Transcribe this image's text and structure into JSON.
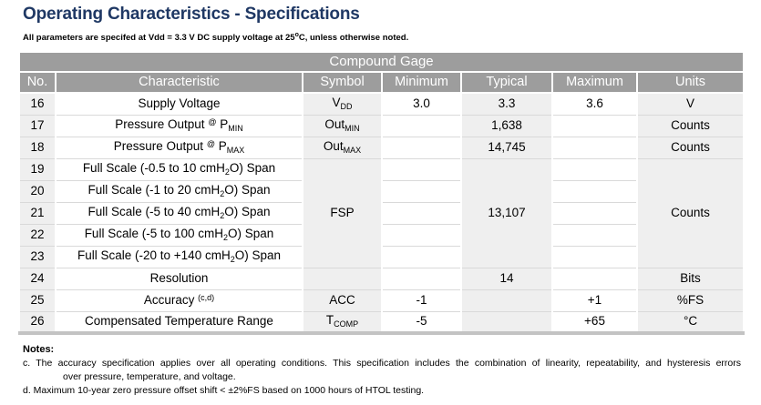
{
  "header": {
    "title": "Operating Characteristics - Specifications",
    "subtitle_pre": "All parameters are specifed at Vdd = 3.3 V DC supply voltage at 25",
    "subtitle_sup": "o",
    "subtitle_post": "C, unless otherwise noted."
  },
  "table": {
    "group_header": "Compound Gage",
    "columns": [
      "No.",
      "Characteristic",
      "Symbol",
      "Minimum",
      "Typical",
      "Maximum",
      "Units"
    ],
    "rows": [
      {
        "cells": [
          {
            "col": "no",
            "text": "16"
          },
          {
            "col": "char",
            "parts": [
              [
                "t",
                "Supply Voltage"
              ]
            ]
          },
          {
            "col": "sym",
            "parts": [
              [
                "t",
                "V"
              ],
              [
                "sub",
                "DD"
              ]
            ]
          },
          {
            "col": "min",
            "text": "3.0"
          },
          {
            "col": "typ",
            "text": "3.3"
          },
          {
            "col": "max",
            "text": "3.6"
          },
          {
            "col": "units",
            "text": "V"
          }
        ]
      },
      {
        "cells": [
          {
            "col": "no",
            "text": "17"
          },
          {
            "col": "char",
            "parts": [
              [
                "t",
                "Pressure Output "
              ],
              [
                "sup",
                "@"
              ],
              [
                "t",
                " P"
              ],
              [
                "sub",
                "MIN"
              ]
            ]
          },
          {
            "col": "sym",
            "parts": [
              [
                "t",
                "Out"
              ],
              [
                "sub",
                "MIN"
              ]
            ]
          },
          {
            "col": "min",
            "text": ""
          },
          {
            "col": "typ",
            "text": "1,638"
          },
          {
            "col": "max",
            "text": ""
          },
          {
            "col": "units",
            "text": "Counts"
          }
        ]
      },
      {
        "cells": [
          {
            "col": "no",
            "text": "18"
          },
          {
            "col": "char",
            "parts": [
              [
                "t",
                "Pressure Output "
              ],
              [
                "sup",
                "@"
              ],
              [
                "t",
                " P"
              ],
              [
                "sub",
                "MAX"
              ]
            ]
          },
          {
            "col": "sym",
            "parts": [
              [
                "t",
                "Out"
              ],
              [
                "sub",
                "MAX"
              ]
            ]
          },
          {
            "col": "min",
            "text": ""
          },
          {
            "col": "typ",
            "text": "14,745"
          },
          {
            "col": "max",
            "text": ""
          },
          {
            "col": "units",
            "text": "Counts"
          }
        ]
      },
      {
        "cells": [
          {
            "col": "no",
            "text": "19"
          },
          {
            "col": "char",
            "parts": [
              [
                "t",
                "Full Scale (-0.5 to 10 cmH"
              ],
              [
                "sub",
                "2"
              ],
              [
                "t",
                "O) Span"
              ]
            ]
          },
          {
            "col": "sym",
            "rowspan": 5,
            "text": "FSP"
          },
          {
            "col": "min",
            "text": ""
          },
          {
            "col": "typ",
            "rowspan": 5,
            "text": "13,107"
          },
          {
            "col": "max",
            "text": ""
          },
          {
            "col": "units",
            "rowspan": 5,
            "text": "Counts"
          }
        ]
      },
      {
        "cells": [
          {
            "col": "no",
            "text": "20"
          },
          {
            "col": "char",
            "parts": [
              [
                "t",
                "Full Scale (-1 to 20 cmH"
              ],
              [
                "sub",
                "2"
              ],
              [
                "t",
                "O) Span"
              ]
            ]
          },
          {
            "col": "min",
            "text": ""
          },
          {
            "col": "max",
            "text": ""
          }
        ]
      },
      {
        "cells": [
          {
            "col": "no",
            "text": "21"
          },
          {
            "col": "char",
            "parts": [
              [
                "t",
                "Full Scale (-5 to 40 cmH"
              ],
              [
                "sub",
                "2"
              ],
              [
                "t",
                "O) Span"
              ]
            ]
          },
          {
            "col": "min",
            "text": ""
          },
          {
            "col": "max",
            "text": ""
          }
        ]
      },
      {
        "cells": [
          {
            "col": "no",
            "text": "22"
          },
          {
            "col": "char",
            "parts": [
              [
                "t",
                "Full Scale (-5 to 100 cmH"
              ],
              [
                "sub",
                "2"
              ],
              [
                "t",
                "O) Span"
              ]
            ]
          },
          {
            "col": "min",
            "text": ""
          },
          {
            "col": "max",
            "text": ""
          }
        ]
      },
      {
        "cells": [
          {
            "col": "no",
            "text": "23"
          },
          {
            "col": "char",
            "parts": [
              [
                "t",
                "Full Scale (-20 to +140 cmH"
              ],
              [
                "sub",
                "2"
              ],
              [
                "t",
                "O) Span"
              ]
            ]
          },
          {
            "col": "min",
            "text": ""
          },
          {
            "col": "max",
            "text": ""
          }
        ]
      },
      {
        "cells": [
          {
            "col": "no",
            "text": "24"
          },
          {
            "col": "char",
            "parts": [
              [
                "t",
                "Resolution"
              ]
            ]
          },
          {
            "col": "sym",
            "text": ""
          },
          {
            "col": "min",
            "text": ""
          },
          {
            "col": "typ",
            "text": "14"
          },
          {
            "col": "max",
            "text": ""
          },
          {
            "col": "units",
            "text": "Bits"
          }
        ]
      },
      {
        "cells": [
          {
            "col": "no",
            "text": "25"
          },
          {
            "col": "char",
            "parts": [
              [
                "t",
                "Accuracy "
              ],
              [
                "sup",
                "(c,d)"
              ]
            ]
          },
          {
            "col": "sym",
            "text": "ACC"
          },
          {
            "col": "min",
            "text": "-1"
          },
          {
            "col": "typ",
            "text": ""
          },
          {
            "col": "max",
            "text": "+1"
          },
          {
            "col": "units",
            "text": "%FS"
          }
        ]
      },
      {
        "cells": [
          {
            "col": "no",
            "text": "26"
          },
          {
            "col": "char",
            "parts": [
              [
                "t",
                "Compensated Temperature Range"
              ]
            ]
          },
          {
            "col": "sym",
            "parts": [
              [
                "t",
                "T"
              ],
              [
                "sub",
                "COMP"
              ]
            ]
          },
          {
            "col": "min",
            "text": "-5"
          },
          {
            "col": "typ",
            "text": ""
          },
          {
            "col": "max",
            "text": "+65"
          },
          {
            "col": "units",
            "text": "°C"
          }
        ]
      }
    ]
  },
  "notes": {
    "label": "Notes:",
    "c_line1": "c. The accuracy specification applies over all operating conditions. This specification includes the combination of linearity, repeatability, and hysteresis errors",
    "c_line2": "over pressure, temperature, and voltage.",
    "d": "d. Maximum 10-year zero pressure offset shift <  ±2%FS based on 1000 hours of HTOL testing."
  },
  "colors": {
    "title": "#1f3864",
    "header_bg": "#9d9d9d",
    "shaded_cell_bg": "#efefef",
    "grid_line": "#d9d9d9",
    "bottom_bar": "#c3c3c3"
  }
}
